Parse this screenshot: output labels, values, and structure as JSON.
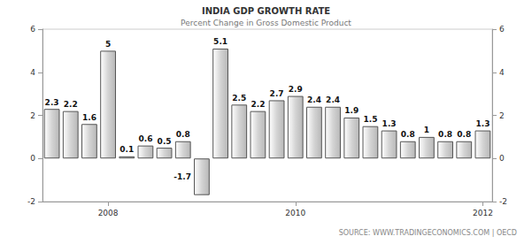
{
  "chart_data": {
    "type": "bar",
    "title": "INDIA GDP GROWTH RATE",
    "subtitle": "Percent Change in Gross Domestic Product",
    "source": "SOURCE: WWW.TRADINGECONOMICS.COM | OECD",
    "categories": [
      null,
      null,
      null,
      "2008",
      null,
      null,
      null,
      null,
      null,
      null,
      null,
      null,
      null,
      "2010",
      null,
      null,
      null,
      null,
      null,
      null,
      null,
      null,
      null,
      "2012"
    ],
    "values": [
      2.3,
      2.2,
      1.6,
      5,
      0.1,
      0.6,
      0.5,
      0.8,
      -1.7,
      5.1,
      2.5,
      2.2,
      2.7,
      2.9,
      2.4,
      2.4,
      1.9,
      1.5,
      1.3,
      0.8,
      1,
      0.8,
      0.8,
      1.3
    ],
    "color": "#d4d4d4",
    "ylim": [
      -2,
      6
    ],
    "yticks": [
      -2,
      0,
      2,
      4,
      6
    ],
    "y2lim": [
      -2,
      6
    ],
    "y2ticks": [
      -2,
      0,
      2,
      4,
      6
    ],
    "grid": false,
    "data_labels": true
  }
}
